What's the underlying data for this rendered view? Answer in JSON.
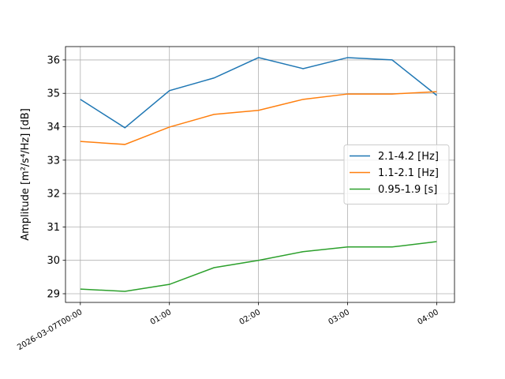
{
  "chart_data": {
    "type": "line",
    "ylabel": "Amplitude [m²/s⁴/Hz] [dB]",
    "x": [
      "2026-03-07T00:00",
      "2026-03-07T00:30",
      "2026-03-07T01:00",
      "2026-03-07T01:30",
      "2026-03-07T02:00",
      "2026-03-07T02:30",
      "2026-03-07T03:00",
      "2026-03-07T03:30",
      "2026-03-07T04:00"
    ],
    "series": [
      {
        "name": "2.1-4.2 [Hz]",
        "color": "#1f77b4",
        "values": [
          34.82,
          33.97,
          35.08,
          35.46,
          36.07,
          35.74,
          36.07,
          36.0,
          34.94
        ]
      },
      {
        "name": "1.1-2.1 [Hz]",
        "color": "#ff7f0e",
        "values": [
          33.56,
          33.47,
          33.99,
          34.37,
          34.49,
          34.82,
          34.98,
          34.98,
          35.05
        ]
      },
      {
        "name": "0.95-1.9 [s]",
        "color": "#2ca02c",
        "values": [
          29.14,
          29.07,
          29.28,
          29.78,
          30.0,
          30.26,
          30.4,
          30.4,
          30.56
        ]
      }
    ],
    "xlim": [
      "2026-03-06T23:50",
      "2026-03-07T04:12"
    ],
    "xticks": [
      "2026-03-07T00:00",
      {
        "value": "2026-03-07T01:00",
        "label": "01:00"
      },
      {
        "value": "2026-03-07T02:00",
        "label": "02:00"
      },
      {
        "value": "2026-03-07T03:00",
        "label": "03:00"
      },
      {
        "value": "2026-03-07T04:00",
        "label": "04:00"
      }
    ],
    "ylim": [
      28.74,
      36.4
    ],
    "yticks": [
      29,
      30,
      31,
      32,
      33,
      34,
      35,
      36
    ],
    "grid": true,
    "legend": "center right"
  }
}
